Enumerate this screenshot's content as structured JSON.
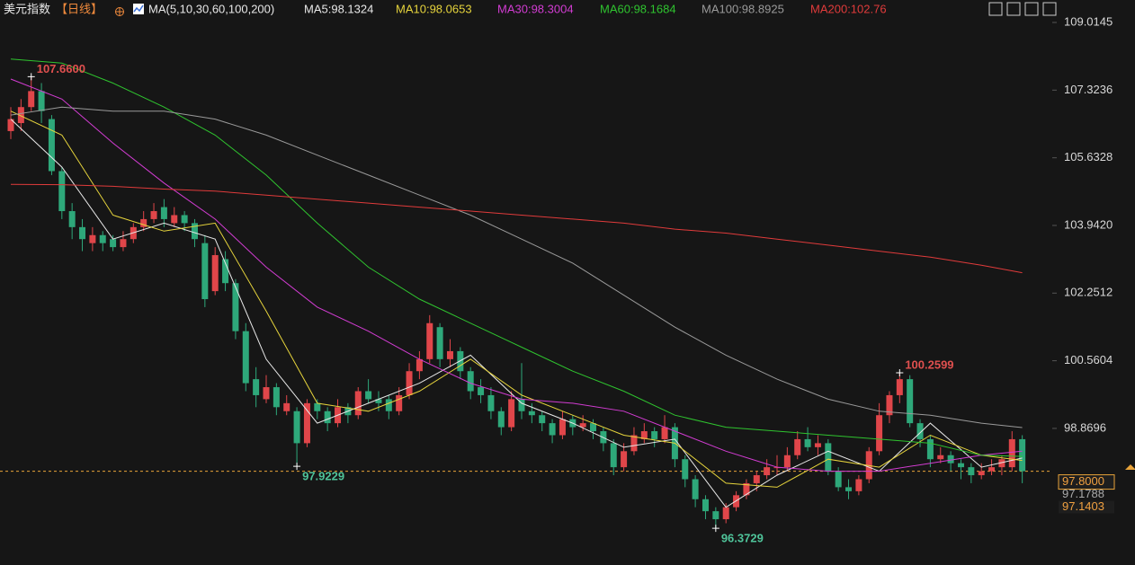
{
  "chart_data": {
    "type": "candlestick",
    "title": "美元指数",
    "period": "【日线】",
    "indicator": "MA(5,10,30,60,100,200)",
    "ylim": [
      95.456,
      109.576
    ],
    "yticks": [
      {
        "value": 109.0145,
        "label": "109.0145"
      },
      {
        "value": 107.3236,
        "label": "107.3236"
      },
      {
        "value": 105.6328,
        "label": "105.6328"
      },
      {
        "value": 103.942,
        "label": "103.9420"
      },
      {
        "value": 102.2512,
        "label": "102.2512"
      },
      {
        "value": 100.5604,
        "label": "100.5604"
      },
      {
        "value": 98.8696,
        "label": "98.8696"
      }
    ],
    "up_color": "#e0464a",
    "down_color": "#2ea87a",
    "candles": [
      [
        106.3,
        106.9,
        106.1,
        106.6
      ],
      [
        106.5,
        107.1,
        106.3,
        106.9
      ],
      [
        106.9,
        107.66,
        106.8,
        107.3
      ],
      [
        107.3,
        107.5,
        106.5,
        106.8
      ],
      [
        106.6,
        106.7,
        105.2,
        105.3
      ],
      [
        105.3,
        105.4,
        104.1,
        104.3
      ],
      [
        104.3,
        104.5,
        103.6,
        103.9
      ],
      [
        103.9,
        104.1,
        103.3,
        103.6
      ],
      [
        103.5,
        103.9,
        103.3,
        103.7
      ],
      [
        103.7,
        103.8,
        103.3,
        103.5
      ],
      [
        103.6,
        103.7,
        103.3,
        103.4
      ],
      [
        103.4,
        103.8,
        103.3,
        103.6
      ],
      [
        103.6,
        104.0,
        103.5,
        103.9
      ],
      [
        103.9,
        104.3,
        103.8,
        104.1
      ],
      [
        104.1,
        104.5,
        104.0,
        104.3
      ],
      [
        104.4,
        104.6,
        103.9,
        104.1
      ],
      [
        104.0,
        104.4,
        103.9,
        104.2
      ],
      [
        104.2,
        104.3,
        103.8,
        104.0
      ],
      [
        104.0,
        104.1,
        103.4,
        103.6
      ],
      [
        103.5,
        103.7,
        101.9,
        102.1
      ],
      [
        102.3,
        103.4,
        102.2,
        103.2
      ],
      [
        103.1,
        103.3,
        102.3,
        102.5
      ],
      [
        102.5,
        102.6,
        101.1,
        101.3
      ],
      [
        101.3,
        101.5,
        99.8,
        100.0
      ],
      [
        100.1,
        100.4,
        99.4,
        99.7
      ],
      [
        99.6,
        100.2,
        99.5,
        99.9
      ],
      [
        99.9,
        100.0,
        99.2,
        99.4
      ],
      [
        99.3,
        99.7,
        99.2,
        99.5
      ],
      [
        99.3,
        99.4,
        97.9229,
        98.5
      ],
      [
        98.5,
        99.6,
        98.4,
        99.5
      ],
      [
        99.5,
        99.6,
        99.1,
        99.3
      ],
      [
        99.3,
        99.4,
        98.8,
        99.0
      ],
      [
        99.0,
        99.6,
        98.9,
        99.4
      ],
      [
        99.4,
        99.5,
        99.0,
        99.2
      ],
      [
        99.2,
        99.9,
        99.1,
        99.8
      ],
      [
        99.8,
        100.1,
        99.5,
        99.6
      ],
      [
        99.6,
        99.8,
        99.3,
        99.5
      ],
      [
        99.6,
        99.7,
        99.1,
        99.3
      ],
      [
        99.3,
        99.9,
        99.2,
        99.7
      ],
      [
        99.7,
        100.5,
        99.6,
        100.3
      ],
      [
        100.3,
        100.8,
        100.1,
        100.6
      ],
      [
        100.6,
        101.7,
        100.5,
        101.5
      ],
      [
        101.4,
        101.5,
        100.4,
        100.6
      ],
      [
        100.6,
        101.1,
        100.4,
        100.8
      ],
      [
        100.8,
        100.9,
        100.1,
        100.3
      ],
      [
        100.3,
        100.4,
        99.6,
        99.8
      ],
      [
        99.9,
        100.1,
        99.5,
        99.7
      ],
      [
        99.7,
        99.9,
        99.1,
        99.3
      ],
      [
        99.3,
        99.4,
        98.7,
        98.9
      ],
      [
        98.9,
        99.8,
        98.8,
        99.6
      ],
      [
        99.6,
        100.5,
        99.1,
        99.3
      ],
      [
        99.3,
        99.5,
        99.0,
        99.2
      ],
      [
        99.2,
        99.3,
        98.8,
        99.0
      ],
      [
        99.0,
        99.1,
        98.5,
        98.7
      ],
      [
        98.7,
        99.3,
        98.6,
        99.1
      ],
      [
        99.1,
        99.2,
        98.7,
        98.9
      ],
      [
        98.9,
        99.2,
        98.8,
        99.0
      ],
      [
        99.0,
        99.1,
        98.6,
        98.8
      ],
      [
        98.8,
        98.9,
        98.3,
        98.5
      ],
      [
        98.5,
        98.6,
        97.7,
        97.9
      ],
      [
        97.9,
        98.5,
        97.8,
        98.3
      ],
      [
        98.3,
        98.9,
        98.2,
        98.7
      ],
      [
        98.6,
        99.0,
        98.5,
        98.8
      ],
      [
        98.8,
        98.9,
        98.4,
        98.6
      ],
      [
        98.6,
        99.2,
        98.5,
        98.9
      ],
      [
        98.9,
        99.0,
        97.9,
        98.1
      ],
      [
        98.1,
        98.2,
        97.4,
        97.6
      ],
      [
        97.6,
        97.7,
        96.9,
        97.1
      ],
      [
        97.1,
        97.2,
        96.6,
        96.8
      ],
      [
        96.8,
        96.9,
        96.3729,
        96.6
      ],
      [
        96.6,
        97.0,
        96.5,
        96.9
      ],
      [
        96.9,
        97.3,
        96.8,
        97.2
      ],
      [
        97.2,
        97.6,
        97.1,
        97.5
      ],
      [
        97.5,
        97.8,
        97.3,
        97.7
      ],
      [
        97.7,
        98.1,
        97.6,
        97.9
      ],
      [
        97.9,
        98.2,
        97.7,
        97.9
      ],
      [
        97.9,
        98.4,
        97.8,
        98.2
      ],
      [
        98.2,
        98.8,
        98.1,
        98.6
      ],
      [
        98.6,
        98.9,
        98.3,
        98.4
      ],
      [
        98.4,
        98.7,
        98.2,
        98.5
      ],
      [
        98.5,
        98.6,
        97.7,
        97.8
      ],
      [
        97.8,
        97.9,
        97.3,
        97.4
      ],
      [
        97.4,
        97.6,
        97.1,
        97.3
      ],
      [
        97.3,
        97.7,
        97.2,
        97.6
      ],
      [
        97.6,
        98.4,
        97.5,
        98.3
      ],
      [
        98.3,
        99.5,
        98.2,
        99.2
      ],
      [
        99.2,
        99.8,
        99.0,
        99.7
      ],
      [
        99.7,
        100.2599,
        99.5,
        100.1
      ],
      [
        100.1,
        100.2,
        98.9,
        99.0
      ],
      [
        99.0,
        99.1,
        98.4,
        98.6
      ],
      [
        98.6,
        98.7,
        97.9,
        98.1
      ],
      [
        98.1,
        98.4,
        98.0,
        98.2
      ],
      [
        98.2,
        98.3,
        97.8,
        98.0
      ],
      [
        98.0,
        98.1,
        97.6,
        97.9
      ],
      [
        97.9,
        98.0,
        97.5,
        97.7
      ],
      [
        97.7,
        98.0,
        97.6,
        97.8
      ],
      [
        97.8,
        98.1,
        97.7,
        97.9
      ],
      [
        97.9,
        98.2,
        97.7,
        98.1
      ],
      [
        97.9,
        98.8,
        97.8,
        98.6
      ],
      [
        98.6,
        98.7,
        97.5,
        97.8
      ]
    ],
    "ma_x": [
      0,
      5,
      10,
      15,
      20,
      25,
      30,
      35,
      40,
      45,
      50,
      55,
      60,
      65,
      70,
      75,
      80,
      85,
      90,
      95,
      99
    ],
    "series": [
      {
        "name": "MA5:98.1324",
        "color": "#e8e8e8",
        "values": [
          106.6,
          105.4,
          103.6,
          104.0,
          103.6,
          100.6,
          99.0,
          99.5,
          100.0,
          100.7,
          99.5,
          99.0,
          98.4,
          98.6,
          96.9,
          97.7,
          98.3,
          97.8,
          99.0,
          97.9,
          98.13
        ]
      },
      {
        "name": "MA10:98.0653",
        "color": "#e6d43c",
        "values": [
          106.8,
          106.2,
          104.2,
          103.8,
          104.0,
          101.8,
          99.5,
          99.3,
          99.8,
          100.6,
          99.7,
          99.2,
          98.7,
          98.5,
          97.5,
          97.4,
          98.1,
          97.9,
          98.7,
          98.2,
          98.07
        ]
      },
      {
        "name": "MA30:98.3004",
        "color": "#d23cd2",
        "values": [
          107.6,
          107.1,
          106.0,
          105.0,
          104.1,
          102.9,
          101.9,
          101.3,
          100.6,
          100.0,
          99.6,
          99.5,
          99.3,
          98.8,
          98.3,
          97.9,
          97.8,
          97.8,
          98.0,
          98.2,
          98.3
        ]
      },
      {
        "name": "MA60:98.1684",
        "color": "#2fc42f",
        "values": [
          108.1,
          108.0,
          107.5,
          106.9,
          106.2,
          105.2,
          104.0,
          102.9,
          102.1,
          101.5,
          100.9,
          100.3,
          99.8,
          99.2,
          98.9,
          98.8,
          98.7,
          98.6,
          98.5,
          98.2,
          98.17
        ]
      },
      {
        "name": "MA100:98.8925",
        "color": "#9a9a9a",
        "values": [
          106.7,
          106.9,
          106.8,
          106.8,
          106.6,
          106.2,
          105.7,
          105.2,
          104.7,
          104.2,
          103.6,
          103.0,
          102.2,
          101.4,
          100.7,
          100.1,
          99.6,
          99.3,
          99.2,
          99.0,
          98.89
        ]
      },
      {
        "name": "MA200:102.76",
        "color": "#e03b3b",
        "values": [
          104.97,
          104.96,
          104.92,
          104.85,
          104.8,
          104.7,
          104.6,
          104.5,
          104.4,
          104.3,
          104.2,
          104.1,
          104.0,
          103.85,
          103.75,
          103.6,
          103.45,
          103.3,
          103.15,
          102.95,
          102.76
        ]
      }
    ],
    "annotations": [
      {
        "label": "107.6600",
        "value": 107.66,
        "candle": 2,
        "color": "#e0504f"
      },
      {
        "label": "97.9229",
        "value": 97.9229,
        "candle": 28,
        "color": "#4fc49a"
      },
      {
        "label": "96.3729",
        "value": 96.3729,
        "candle": 69,
        "color": "#4fc49a"
      },
      {
        "label": "100.2599",
        "value": 100.2599,
        "candle": 87,
        "color": "#e0504f"
      }
    ],
    "price_tags": [
      {
        "value": 97.8,
        "label": "97.8000"
      },
      {
        "value": 97.1788,
        "label": "97.1788"
      },
      {
        "value": 97.1403,
        "label": "97.1403"
      }
    ]
  }
}
